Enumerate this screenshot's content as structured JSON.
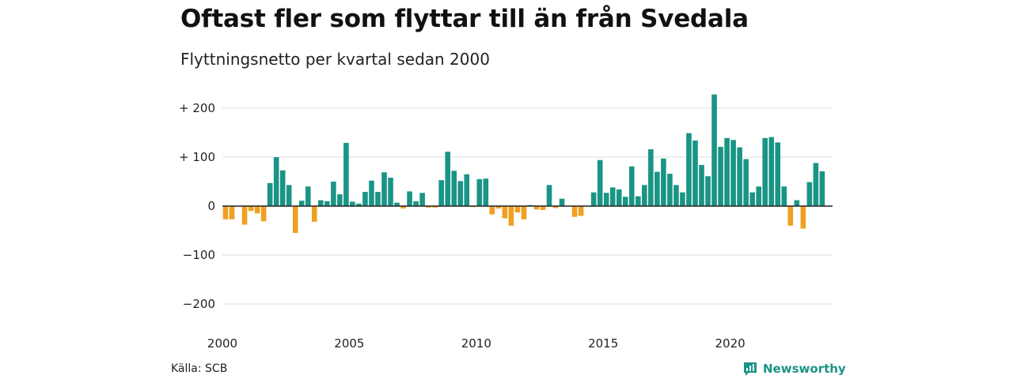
{
  "title": "Oftast fler som flyttar till än från Svedala",
  "subtitle": "Flyttningsnetto per kvartal sedan 2000",
  "source": "Källa: SCB",
  "brand": {
    "name": "Newsworthy",
    "icon": "newsworthy-logo-icon"
  },
  "colors": {
    "positive": "#1a9485",
    "negative": "#f0a020",
    "brand": "#1a9485",
    "grid": "#dddddd",
    "zero_line": "#222222"
  },
  "chart_data": {
    "type": "bar",
    "x_start": "2000 Q1",
    "quarters_per_year": 4,
    "ylim": [
      -200,
      230
    ],
    "yticks": [
      200,
      100,
      0,
      -100,
      -200
    ],
    "ytick_labels": [
      "+ 200",
      "+ 100",
      "0",
      "−100",
      "−200"
    ],
    "xticks": [
      "2000",
      "2005",
      "2010",
      "2015",
      "2020"
    ],
    "grid": true,
    "values": [
      -27,
      -27,
      0,
      -38,
      -10,
      -15,
      -31,
      47,
      100,
      73,
      43,
      -55,
      11,
      40,
      -32,
      12,
      10,
      50,
      24,
      129,
      9,
      5,
      29,
      52,
      29,
      69,
      58,
      7,
      -5,
      30,
      10,
      27,
      -3,
      -3,
      53,
      111,
      72,
      51,
      65,
      -2,
      55,
      56,
      -17,
      -5,
      -25,
      -40,
      -13,
      -27,
      2,
      -7,
      -8,
      43,
      -4,
      15,
      0,
      -22,
      -20,
      0,
      28,
      94,
      27,
      38,
      34,
      19,
      81,
      20,
      43,
      116,
      70,
      97,
      66,
      43,
      28,
      149,
      134,
      84,
      61,
      228,
      121,
      139,
      135,
      120,
      96,
      28,
      40,
      139,
      141,
      130,
      40,
      -40,
      12,
      -46,
      49,
      88,
      71
    ]
  }
}
